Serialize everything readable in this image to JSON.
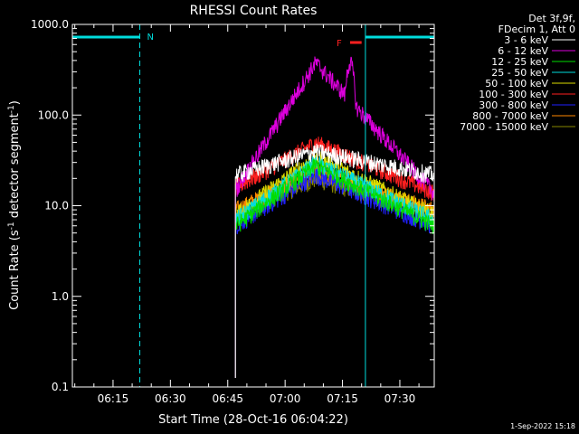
{
  "chart_data": {
    "type": "line",
    "title": "RHESSI Count Rates",
    "xlabel": "Start Time (28-Oct-16 06:04:22)",
    "ylabel_main": "Count Rate (s",
    "ylabel_sup1": "-1",
    "ylabel_mid": " detector segment",
    "ylabel_sup2": "-1",
    "ylabel_end": ")",
    "y_scale": "log",
    "ylim": [
      0.1,
      1000.0
    ],
    "xlim_minutes": [
      "06:04:22",
      "07:39:00"
    ],
    "x_ticks": [
      "06:15",
      "06:30",
      "06:45",
      "07:00",
      "07:15",
      "07:30"
    ],
    "y_ticks": [
      "0.1",
      "1.0",
      "10.0",
      "100.0",
      "1000.0"
    ],
    "grid": false,
    "legend_header": [
      "Det 3f,9f,",
      "FDecim 1, Att 0"
    ],
    "series": [
      {
        "name": "3 - 6 keV",
        "color": "#ffffff",
        "start_level": 22,
        "peak_level": 40,
        "end_level": 22
      },
      {
        "name": "6 - 12 keV",
        "color": "#dd00dd",
        "start_level": 15,
        "peak_level": 380,
        "end_level": 14
      },
      {
        "name": "12 - 25 keV",
        "color": "#00dd00",
        "start_level": 6,
        "peak_level": 28,
        "end_level": 6
      },
      {
        "name": "25 - 50 keV",
        "color": "#00dddd",
        "start_level": 7,
        "peak_level": 30,
        "end_level": 7
      },
      {
        "name": "50 - 100 keV",
        "color": "#dddd00",
        "start_level": 8,
        "peak_level": 35,
        "end_level": 8
      },
      {
        "name": "100 - 300 keV",
        "color": "#ff2020",
        "start_level": 16,
        "peak_level": 50,
        "end_level": 14
      },
      {
        "name": "300 - 800 keV",
        "color": "#2020ff",
        "start_level": 6,
        "peak_level": 22,
        "end_level": 6
      },
      {
        "name": "800 - 7000 keV",
        "color": "#ff8800",
        "start_level": 9,
        "peak_level": 25,
        "end_level": 9
      },
      {
        "name": "7000 - 15000 keV",
        "color": "#888800",
        "start_level": 8,
        "peak_level": 20,
        "end_level": 8
      }
    ],
    "data_start_time": "06:47",
    "data_end_time": "07:39",
    "peak_time": "07:08",
    "flare_peak_time": "07:17",
    "annotations": {
      "night_label": "N",
      "flare_label": "F"
    },
    "night_intervals": [
      [
        "06:04:22",
        "06:22"
      ],
      [
        "07:21",
        "07:39"
      ]
    ],
    "flare_interval": [
      "07:17",
      "07:20"
    ]
  },
  "footer_date": "1-Sep-2022 15:18"
}
